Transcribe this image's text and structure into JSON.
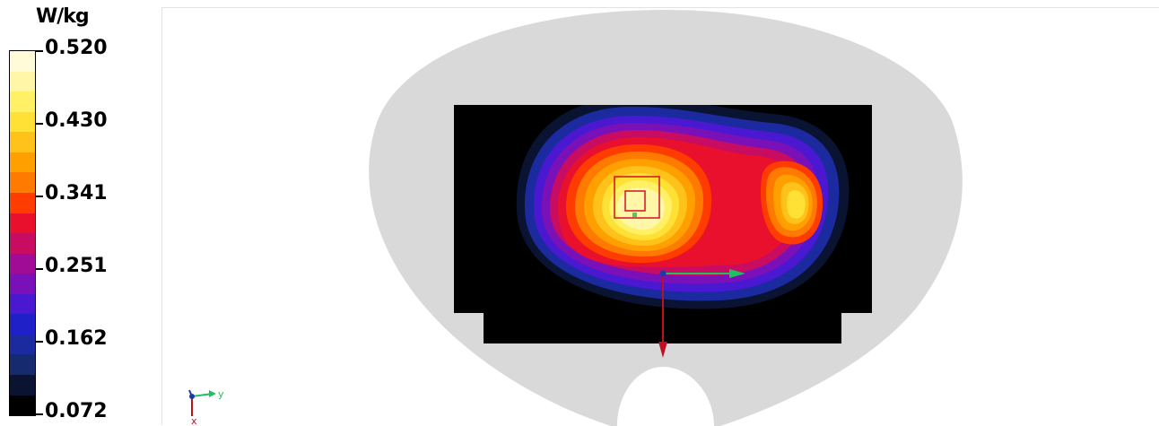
{
  "legend": {
    "unit": "W/kg",
    "labels": [
      "0.520",
      "0.430",
      "0.341",
      "0.251",
      "0.162",
      "0.072"
    ],
    "swatches": [
      "#fffbd8",
      "#fff6a8",
      "#fff066",
      "#ffe135",
      "#ffc21a",
      "#ffa000",
      "#ff7a00",
      "#ff3c00",
      "#e8102c",
      "#c80c62",
      "#a00c96",
      "#7a10b8",
      "#4a18d0",
      "#2020c8",
      "#1c2aa0",
      "#162a70",
      "#0a1432",
      "#000000"
    ],
    "icons": [
      "colorbar-icon"
    ]
  },
  "viewport": {
    "colors": {
      "phantom": "#d9d9d9",
      "cavity": "#000000",
      "frame": "#e2e2e2"
    },
    "axis_labels": {
      "y": "y",
      "x": "x"
    },
    "icons": [
      "orientation-triad-icon",
      "measurement-cursor-icon",
      "peak-cube-icon"
    ]
  }
}
